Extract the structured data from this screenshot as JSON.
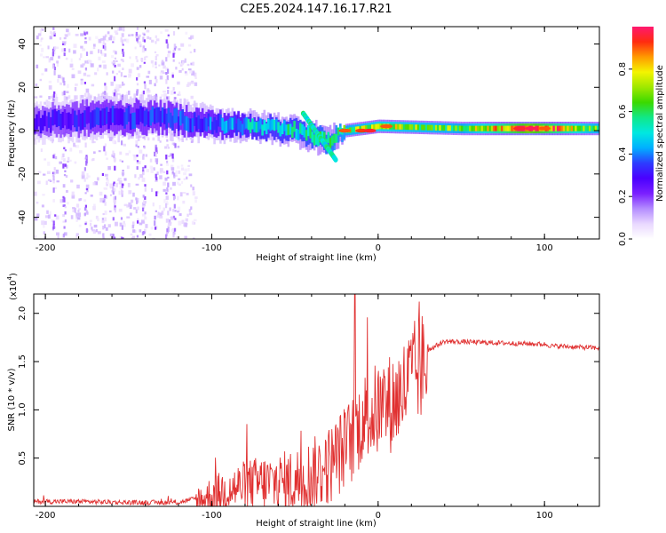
{
  "title": "C2E5.2024.147.16.17.R21",
  "colors": {
    "snr_line": "#e03030",
    "axis": "#000000",
    "colormap": [
      "#ffffff",
      "#e9d8ff",
      "#b48cff",
      "#7a20ff",
      "#4a00ff",
      "#2d3cff",
      "#00b0ff",
      "#00e8e0",
      "#10e88a",
      "#3bd900",
      "#9ee800",
      "#f4f400",
      "#ff9a00",
      "#ff2b10",
      "#ff1870"
    ]
  },
  "chart_data": [
    {
      "type": "heatmap",
      "title": "",
      "xlabel": "Height of straight line (km)",
      "ylabel": "Frequency (Hz)",
      "xlim": [
        -207,
        133
      ],
      "ylim": [
        -50,
        48
      ],
      "x_ticks": [
        "-200",
        "-100",
        "0",
        "100"
      ],
      "x_tick_values": [
        -200,
        -100,
        0,
        100
      ],
      "y_ticks": [
        "40",
        "20",
        "0",
        "-20",
        "-40"
      ],
      "y_tick_values": [
        40,
        20,
        0,
        -20,
        -40
      ],
      "colorbar": {
        "label": "Normalized spectral amplitude",
        "range": [
          0,
          1
        ],
        "ticks": [
          "0.0",
          "0.2",
          "0.4",
          "0.6",
          "0.8"
        ],
        "tick_values": [
          0,
          0.2,
          0.4,
          0.6,
          0.8
        ]
      },
      "ridge": {
        "description_points": [
          {
            "x": -207,
            "center_hz": 4,
            "width_hz": 14,
            "amplitude": 0.25
          },
          {
            "x": -170,
            "center_hz": 6,
            "width_hz": 16,
            "amplitude": 0.3
          },
          {
            "x": -130,
            "center_hz": 6,
            "width_hz": 14,
            "amplitude": 0.32
          },
          {
            "x": -100,
            "center_hz": 3,
            "width_hz": 12,
            "amplitude": 0.35
          },
          {
            "x": -75,
            "center_hz": 2,
            "width_hz": 10,
            "amplitude": 0.45
          },
          {
            "x": -50,
            "center_hz": 0,
            "width_hz": 10,
            "amplitude": 0.5
          },
          {
            "x": -30,
            "center_hz": -5,
            "width_hz": 10,
            "amplitude": 0.55
          },
          {
            "x": -20,
            "center_hz": 0,
            "width_hz": 5,
            "amplitude": 0.6
          },
          {
            "x": 0,
            "center_hz": 2,
            "width_hz": 5,
            "amplitude": 0.7
          },
          {
            "x": 50,
            "center_hz": 1,
            "width_hz": 5,
            "amplitude": 0.6
          },
          {
            "x": 90,
            "center_hz": 1,
            "width_hz": 5,
            "amplitude": 0.95
          },
          {
            "x": 133,
            "center_hz": 1,
            "width_hz": 5,
            "amplitude": 0.6
          }
        ]
      }
    },
    {
      "type": "line",
      "title": "",
      "xlabel": "Height of straight line (km)",
      "ylabel": "SNR (10 * v/v)",
      "y_multiplier": "(x10",
      "y_multiplier_exp": "4",
      "y_multiplier_close": ")",
      "xlim": [
        -207,
        133
      ],
      "ylim": [
        0,
        2.2
      ],
      "x_ticks": [
        "-200",
        "-100",
        "0",
        "100"
      ],
      "x_tick_values": [
        -200,
        -100,
        0,
        100
      ],
      "y_ticks": [
        "2.0",
        "1.5",
        "1.0",
        "0.5"
      ],
      "y_tick_values": [
        2.0,
        1.5,
        1.0,
        0.5
      ],
      "series": [
        {
          "x": [
            -207,
            -180,
            -150,
            -120,
            -110,
            -100,
            -90,
            -80,
            -70,
            -60,
            -50,
            -40,
            -30,
            -25,
            -20,
            -15,
            -12,
            -10,
            -5,
            0,
            5,
            10,
            15,
            20,
            30,
            40,
            60,
            80,
            100,
            105,
            110,
            120,
            133
          ],
          "y": [
            0.05,
            0.05,
            0.04,
            0.04,
            0.08,
            0.15,
            0.22,
            0.27,
            0.3,
            0.3,
            0.33,
            0.4,
            0.5,
            0.6,
            0.7,
            0.8,
            0.9,
            1.0,
            1.05,
            1.1,
            1.15,
            1.2,
            1.3,
            1.45,
            1.62,
            1.71,
            1.7,
            1.69,
            1.68,
            1.66,
            1.66,
            1.65,
            1.64
          ]
        }
      ]
    }
  ]
}
